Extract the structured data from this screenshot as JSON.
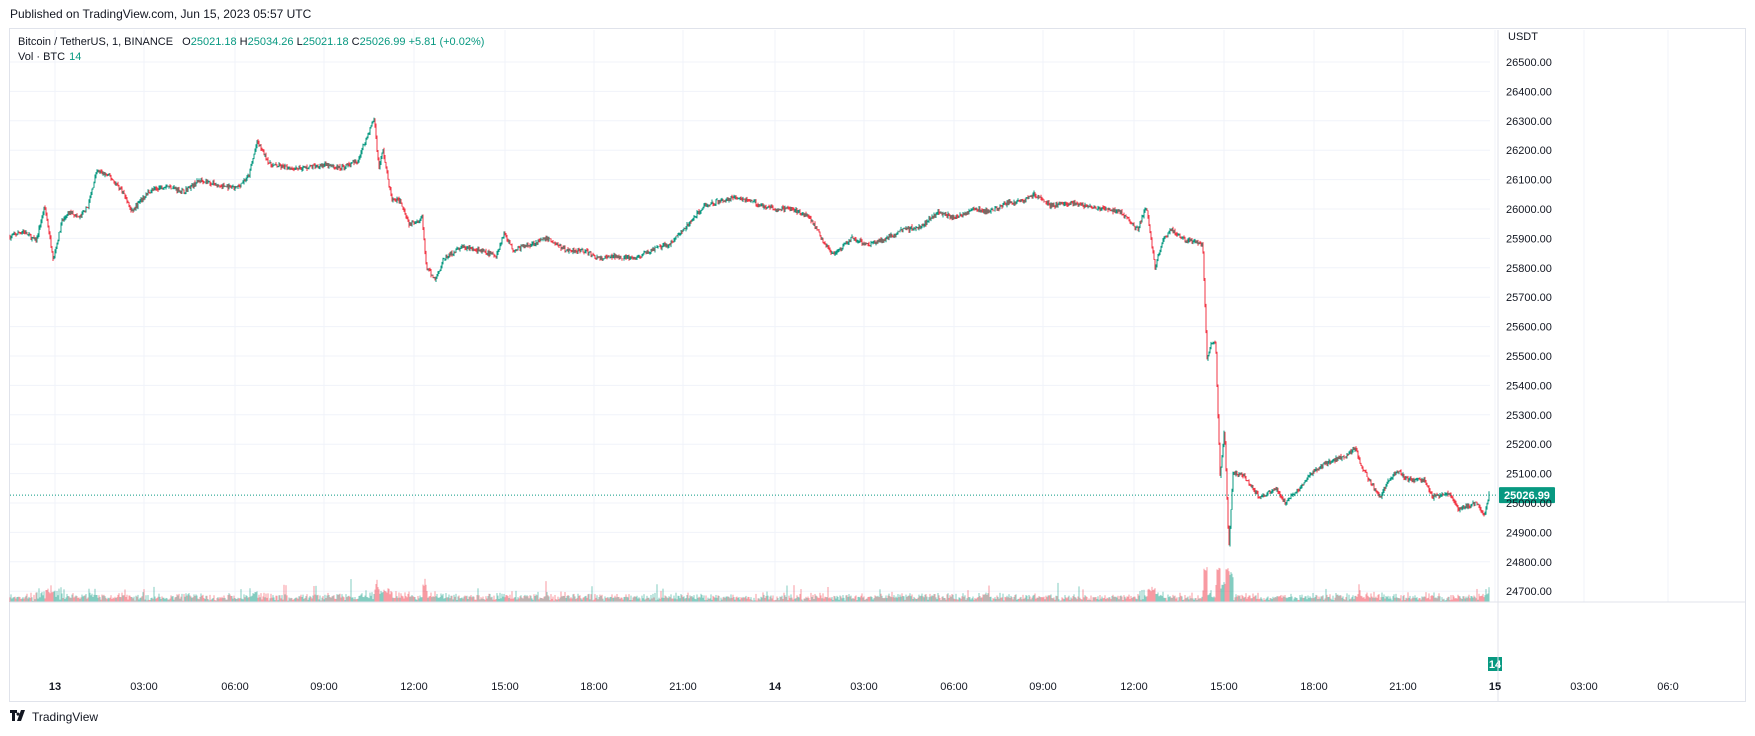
{
  "header": {
    "published": "Published on TradingView.com, Jun 15, 2023 05:57 UTC"
  },
  "legend": {
    "symbol": "Bitcoin / TetherUS, 1, BINANCE",
    "o_label": "O",
    "o_value": "25021.18",
    "h_label": "H",
    "h_value": "25034.26",
    "l_label": "L",
    "l_value": "25021.18",
    "c_label": "C",
    "c_value": "25026.99",
    "change": "+5.81 (+0.02%)",
    "vol_label": "Vol · BTC",
    "vol_value": "14"
  },
  "footer": {
    "brand": "TradingView",
    "logo_icon": "tradingview-logo-icon"
  },
  "colors": {
    "up": "#089981",
    "down": "#f23645",
    "grid": "#f0f3fa",
    "text": "#131722"
  },
  "chart_data": {
    "type": "candlestick",
    "title": "Bitcoin / TetherUS, 1, BINANCE",
    "price_unit": "USDT",
    "ylim": [
      24650,
      26600
    ],
    "y_ticks": [
      "26500.00",
      "26400.00",
      "26300.00",
      "26200.00",
      "26100.00",
      "26000.00",
      "25900.00",
      "25800.00",
      "25700.00",
      "25600.00",
      "25500.00",
      "25400.00",
      "25300.00",
      "25200.00",
      "25100.00",
      "25000.00",
      "24900.00",
      "24800.00",
      "24700.00"
    ],
    "x_ticks": [
      "13",
      "03:00",
      "06:00",
      "09:00",
      "12:00",
      "15:00",
      "18:00",
      "21:00",
      "14",
      "03:00",
      "06:00",
      "09:00",
      "12:00",
      "15:00",
      "18:00",
      "21:00",
      "15",
      "03:00",
      "06:0"
    ],
    "last_price": "25026.99",
    "last_volume": "14",
    "price_path": [
      [
        0,
        25905
      ],
      [
        3,
        25925
      ],
      [
        6,
        25890
      ],
      [
        8,
        26010
      ],
      [
        10,
        25830
      ],
      [
        12,
        25960
      ],
      [
        14,
        25990
      ],
      [
        16,
        25970
      ],
      [
        18,
        26010
      ],
      [
        20,
        26130
      ],
      [
        23,
        26110
      ],
      [
        26,
        26060
      ],
      [
        28,
        25990
      ],
      [
        32,
        26060
      ],
      [
        36,
        26080
      ],
      [
        40,
        26060
      ],
      [
        44,
        26100
      ],
      [
        48,
        26080
      ],
      [
        52,
        26070
      ],
      [
        55,
        26110
      ],
      [
        57,
        26230
      ],
      [
        60,
        26150
      ],
      [
        64,
        26140
      ],
      [
        68,
        26140
      ],
      [
        72,
        26150
      ],
      [
        76,
        26140
      ],
      [
        80,
        26160
      ],
      [
        84,
        26310
      ],
      [
        85,
        26140
      ],
      [
        86,
        26200
      ],
      [
        88,
        26030
      ],
      [
        90,
        26030
      ],
      [
        92,
        25950
      ],
      [
        95,
        25970
      ],
      [
        96,
        25800
      ],
      [
        98,
        25760
      ],
      [
        100,
        25830
      ],
      [
        104,
        25870
      ],
      [
        108,
        25860
      ],
      [
        112,
        25840
      ],
      [
        114,
        25920
      ],
      [
        116,
        25860
      ],
      [
        120,
        25880
      ],
      [
        124,
        25900
      ],
      [
        128,
        25860
      ],
      [
        132,
        25860
      ],
      [
        136,
        25830
      ],
      [
        140,
        25840
      ],
      [
        144,
        25830
      ],
      [
        148,
        25860
      ],
      [
        152,
        25880
      ],
      [
        156,
        25940
      ],
      [
        160,
        26010
      ],
      [
        164,
        26030
      ],
      [
        168,
        26040
      ],
      [
        172,
        26020
      ],
      [
        176,
        26000
      ],
      [
        180,
        26000
      ],
      [
        184,
        25980
      ],
      [
        188,
        25880
      ],
      [
        190,
        25840
      ],
      [
        194,
        25900
      ],
      [
        198,
        25880
      ],
      [
        202,
        25900
      ],
      [
        206,
        25930
      ],
      [
        210,
        25940
      ],
      [
        214,
        25990
      ],
      [
        218,
        25970
      ],
      [
        222,
        26000
      ],
      [
        226,
        25990
      ],
      [
        230,
        26020
      ],
      [
        234,
        26030
      ],
      [
        236,
        26050
      ],
      [
        240,
        26010
      ],
      [
        244,
        26020
      ],
      [
        248,
        26010
      ],
      [
        252,
        26000
      ],
      [
        256,
        25990
      ],
      [
        260,
        25930
      ],
      [
        262,
        26010
      ],
      [
        264,
        25800
      ],
      [
        266,
        25900
      ],
      [
        268,
        25930
      ],
      [
        271,
        25890
      ],
      [
        273,
        25890
      ],
      [
        275,
        25880
      ],
      [
        276,
        25480
      ],
      [
        277,
        25550
      ],
      [
        278,
        25540
      ],
      [
        279,
        25080
      ],
      [
        280,
        25260
      ],
      [
        281,
        24850
      ],
      [
        282,
        25100
      ],
      [
        284,
        25100
      ],
      [
        288,
        25020
      ],
      [
        292,
        25050
      ],
      [
        294,
        25000
      ],
      [
        298,
        25060
      ],
      [
        300,
        25100
      ],
      [
        304,
        25140
      ],
      [
        308,
        25160
      ],
      [
        310,
        25190
      ],
      [
        312,
        25110
      ],
      [
        316,
        25020
      ],
      [
        318,
        25080
      ],
      [
        320,
        25110
      ],
      [
        322,
        25080
      ],
      [
        326,
        25080
      ],
      [
        328,
        25020
      ],
      [
        332,
        25030
      ],
      [
        334,
        24980
      ],
      [
        338,
        25000
      ],
      [
        340,
        24960
      ],
      [
        341,
        25026.99
      ]
    ]
  }
}
